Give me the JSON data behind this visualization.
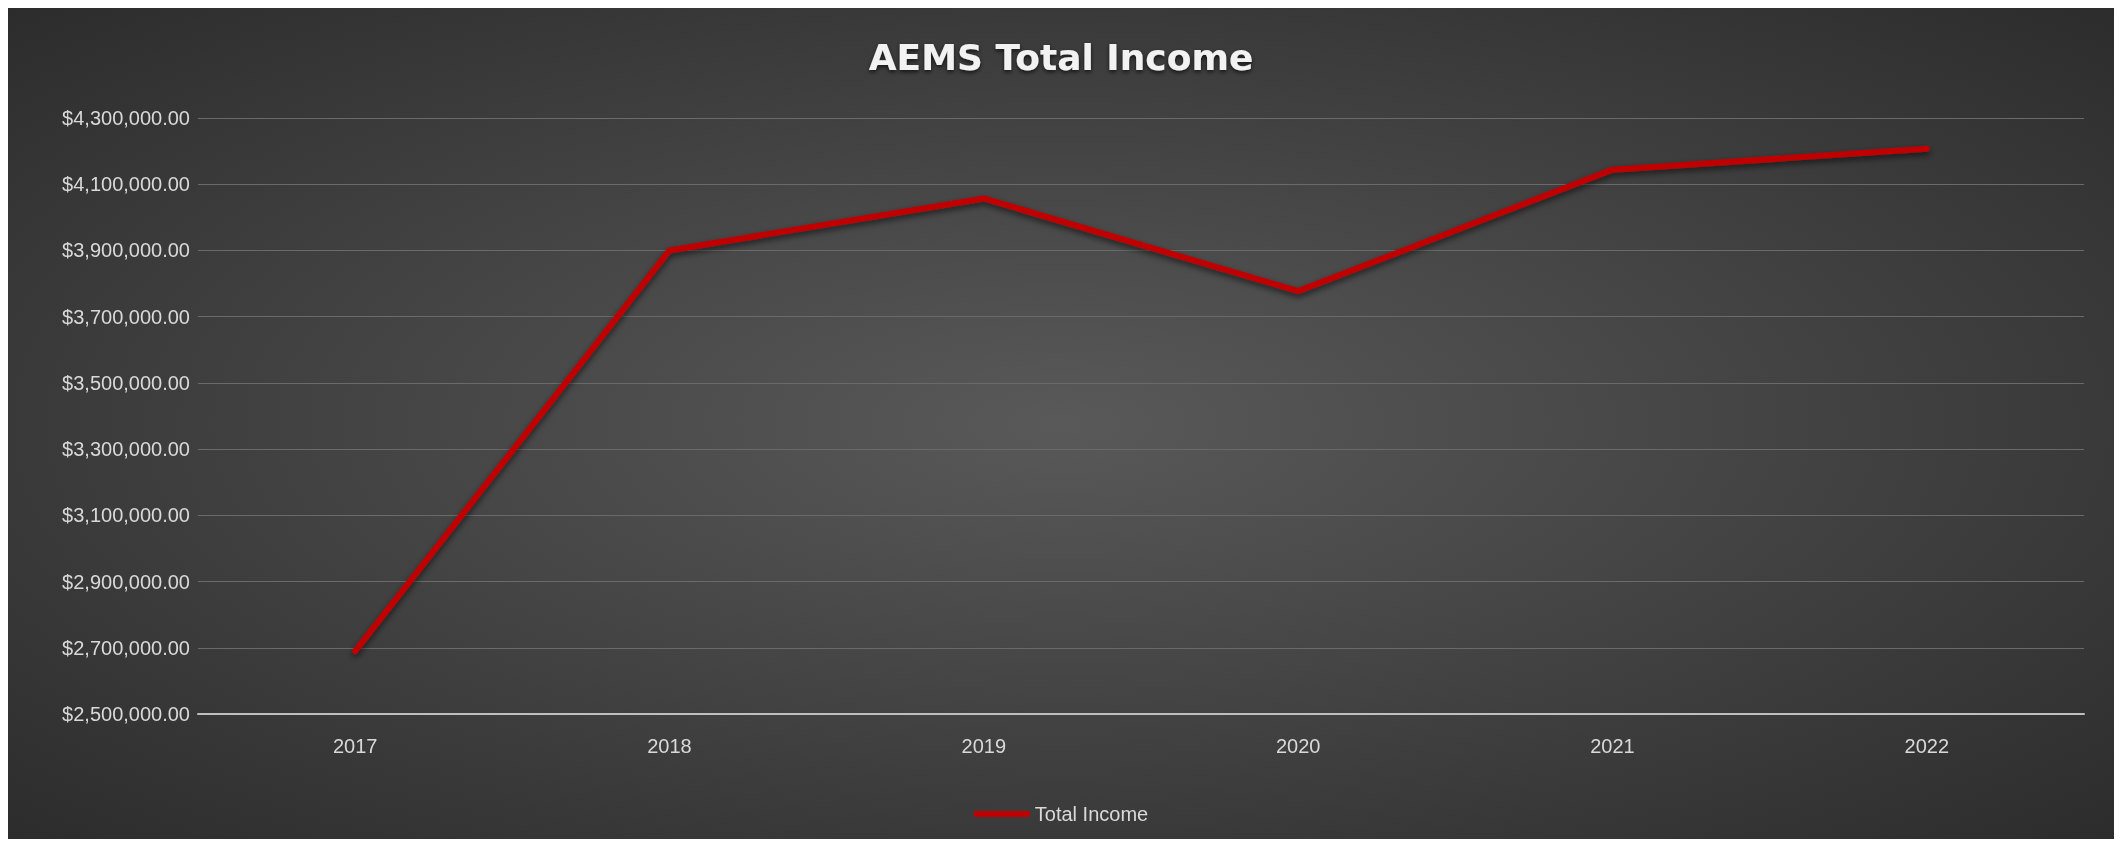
{
  "chart_data": {
    "type": "line",
    "title": "AEMS Total Income",
    "categories": [
      "2017",
      "2018",
      "2019",
      "2020",
      "2021",
      "2022"
    ],
    "series": [
      {
        "name": "Total Income",
        "color": "#c00000",
        "values": [
          2690000,
          3900000,
          4057000,
          3777000,
          4144000,
          4207000
        ]
      }
    ],
    "ylim": [
      2500000,
      4300000
    ],
    "yticks": [
      {
        "value": 2500000,
        "label": "$2,500,000.00"
      },
      {
        "value": 2700000,
        "label": "$2,700,000.00"
      },
      {
        "value": 2900000,
        "label": "$2,900,000.00"
      },
      {
        "value": 3100000,
        "label": "$3,100,000.00"
      },
      {
        "value": 3300000,
        "label": "$3,300,000.00"
      },
      {
        "value": 3500000,
        "label": "$3,500,000.00"
      },
      {
        "value": 3700000,
        "label": "$3,700,000.00"
      },
      {
        "value": 3900000,
        "label": "$3,900,000.00"
      },
      {
        "value": 4100000,
        "label": "$4,100,000.00"
      },
      {
        "value": 4300000,
        "label": "$4,300,000.00"
      }
    ],
    "grid": "y",
    "legend": "bottom",
    "marker": "none",
    "line_style": "solid"
  }
}
